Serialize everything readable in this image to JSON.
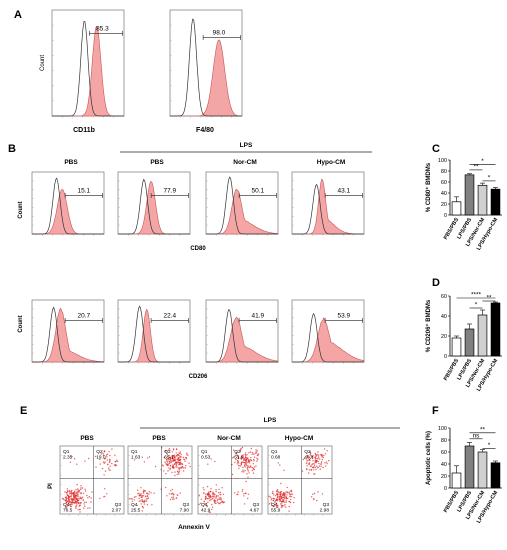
{
  "panels": {
    "A": {
      "letter": "A",
      "ylabel": "Count",
      "plots": [
        {
          "xlabel": "CD11b",
          "value": "85.3"
        },
        {
          "xlabel": "F4/80",
          "value": "98.0"
        }
      ]
    },
    "B": {
      "letter": "B",
      "group_label": "LPS",
      "columns": [
        "PBS",
        "PBS",
        "Nor-CM",
        "Hypo-CM"
      ],
      "rows": [
        {
          "ylabel": "Count",
          "xlabel": "CD80",
          "values": [
            "15.1",
            "77.9",
            "50.1",
            "43.1"
          ]
        },
        {
          "ylabel": "Count",
          "xlabel": "CD206",
          "values": [
            "20.7",
            "22.4",
            "41.9",
            "53.9"
          ]
        }
      ]
    },
    "C": {
      "letter": "C",
      "ylabel": "% CD80⁺ BMDMs",
      "categories": [
        "PBS/PBS",
        "LPS/PBS",
        "LPS/Nor-CM",
        "LPS/Hypo-CM"
      ],
      "sig": [
        "*",
        "**",
        "*"
      ]
    },
    "D": {
      "letter": "D",
      "ylabel": "% CD206⁺ BMDMs",
      "categories": [
        "PBS/PBS",
        "LPS/PBS",
        "LPS/Nor-CM",
        "LPS/Hypo-CM"
      ],
      "sig": [
        "****",
        "*",
        "**"
      ]
    },
    "E": {
      "letter": "E",
      "group_label": "LPS",
      "columns": [
        "PBS",
        "PBS",
        "Nor-CM",
        "Hypo-CM"
      ],
      "ylabel": "PI",
      "xlabel": "Annexin V",
      "plots": [
        {
          "q1": "Q1",
          "q1v": "2.35",
          "q2": "Q2",
          "q2v": "19.0",
          "q3": "Q3",
          "q3v": "2.07",
          "q4": "Q4",
          "q4v": "76.5"
        },
        {
          "q1": "Q1",
          "q1v": "1.63",
          "q2": "Q2",
          "q2v": "65.1",
          "q3": "Q3",
          "q3v": "7.90",
          "q4": "Q4",
          "q4v": "25.5"
        },
        {
          "q1": "Q1",
          "q1v": "0.53",
          "q2": "Q2",
          "q2v": "51.9",
          "q3": "Q3",
          "q3v": "4.67",
          "q4": "Q4",
          "q4v": "42.9"
        },
        {
          "q1": "Q1",
          "q1v": "0.68",
          "q2": "Q2",
          "q2v": "40.4",
          "q3": "Q3",
          "q3v": "2.98",
          "q4": "Q4",
          "q4v": "55.9"
        }
      ]
    },
    "F": {
      "letter": "F",
      "ylabel": "Apoptotic cells (%)",
      "categories": [
        "PBS/PBS",
        "LPS/PBS",
        "LPS/Nor-CM",
        "LPS/Hypo-CM"
      ],
      "sig": [
        "ns",
        "**",
        "*"
      ]
    }
  },
  "chart_data": [
    {
      "type": "bar",
      "panel": "C",
      "categories": [
        "PBS/PBS",
        "LPS/PBS",
        "LPS/Nor-CM",
        "LPS/Hypo-CM"
      ],
      "values": [
        24,
        73,
        54,
        47
      ],
      "errors": [
        9,
        2,
        4,
        3
      ],
      "yticks": [
        0,
        20,
        40,
        60,
        80,
        100
      ],
      "ylim": [
        0,
        100
      ],
      "ylabel": "% CD80⁺ BMDMs",
      "colors": [
        "#ffffff",
        "#808080",
        "#d0d0d0",
        "#000000"
      ]
    },
    {
      "type": "bar",
      "panel": "D",
      "categories": [
        "PBS/PBS",
        "LPS/PBS",
        "LPS/Nor-CM",
        "LPS/Hypo-CM"
      ],
      "values": [
        18,
        27,
        41,
        53
      ],
      "errors": [
        2,
        5,
        5,
        1
      ],
      "yticks": [
        0,
        20,
        40,
        60
      ],
      "ylim": [
        0,
        60
      ],
      "ylabel": "% CD206⁺ BMDMs",
      "colors": [
        "#ffffff",
        "#808080",
        "#d0d0d0",
        "#000000"
      ]
    },
    {
      "type": "bar",
      "panel": "F",
      "categories": [
        "PBS/PBS",
        "LPS/PBS",
        "LPS/Nor-CM",
        "LPS/Hypo-CM"
      ],
      "values": [
        25,
        70,
        60,
        42
      ],
      "errors": [
        12,
        6,
        4,
        3
      ],
      "yticks": [
        0,
        20,
        40,
        60,
        80,
        100
      ],
      "ylim": [
        0,
        100
      ],
      "ylabel": "Apoptotic cells (%)",
      "colors": [
        "#ffffff",
        "#808080",
        "#d0d0d0",
        "#000000"
      ]
    }
  ]
}
